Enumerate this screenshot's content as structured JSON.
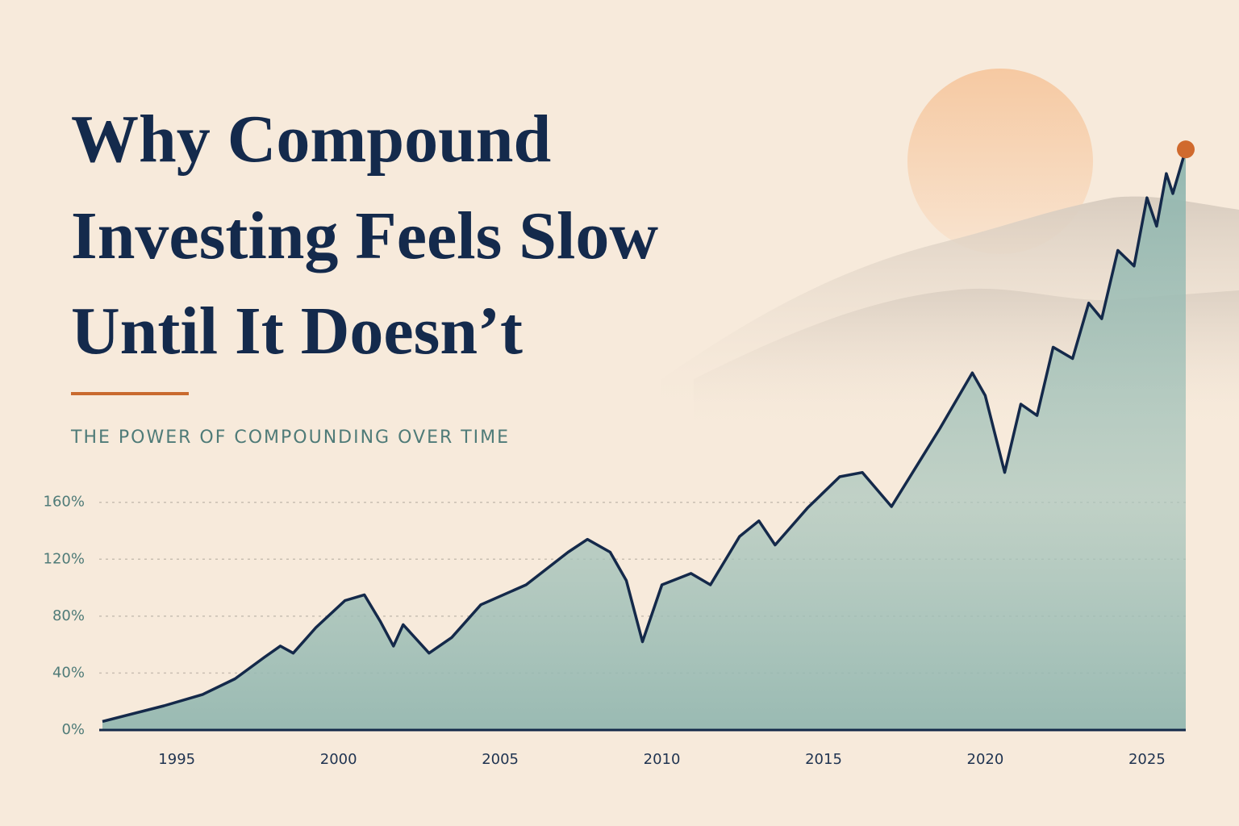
{
  "chart_data": {
    "type": "area",
    "title": [
      "Why Compound",
      "Investing Feels Slow",
      "Until It Doesn’t"
    ],
    "subtitle": "THE POWER OF COMPOUNDING OVER TIME",
    "x": [
      1992.7,
      1994.6,
      1995.8,
      1996.8,
      1997.7,
      1998.2,
      1998.6,
      1999.3,
      2000.2,
      2000.8,
      2001.3,
      2001.7,
      2002.0,
      2002.8,
      2003.5,
      2004.4,
      2005.8,
      2007.1,
      2007.7,
      2008.4,
      2008.9,
      2009.4,
      2010.0,
      2010.9,
      2011.5,
      2012.4,
      2013.0,
      2013.5,
      2014.5,
      2015.5,
      2016.2,
      2017.1,
      2018.6,
      2019.6,
      2020.0,
      2020.6,
      2021.1,
      2021.6,
      2022.1,
      2022.7,
      2023.2,
      2023.6,
      2024.1,
      2024.6,
      2025.0,
      2025.3,
      2025.6,
      2025.8,
      2026.2
    ],
    "values": [
      6,
      17,
      25,
      36,
      51,
      59,
      54,
      72,
      91,
      95,
      76,
      59,
      74,
      54,
      65,
      88,
      102,
      125,
      134,
      125,
      105,
      62,
      102,
      110,
      102,
      136,
      147,
      130,
      156,
      178,
      181,
      157,
      212,
      251,
      235,
      181,
      229,
      221,
      269,
      261,
      300,
      289,
      337,
      326,
      374,
      354,
      391,
      377,
      408
    ],
    "color": "#14294a",
    "fill": "#8fb5ae",
    "marker_color": "#d06a2e",
    "xlim": [
      1992.6,
      2026.2
    ],
    "xticks": [
      1995,
      2000,
      2005,
      2010,
      2015,
      2020,
      2025
    ],
    "ylim": [
      0,
      420
    ],
    "yticks": [
      {
        "value": 0,
        "label": "0%"
      },
      {
        "value": 40,
        "label": "40%"
      },
      {
        "value": 80,
        "label": "80%"
      },
      {
        "value": 120,
        "label": "120%"
      },
      {
        "value": 160,
        "label": "160%"
      }
    ],
    "grid": true
  }
}
